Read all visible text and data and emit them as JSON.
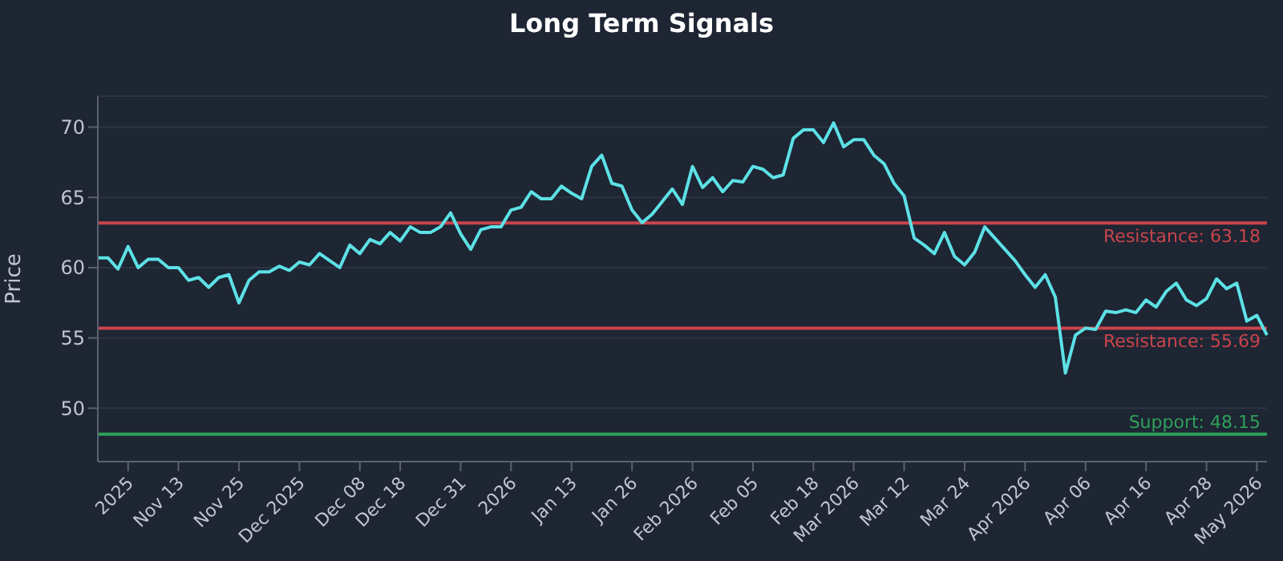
{
  "chart_data": {
    "type": "line",
    "title": "Long Term Signals",
    "ylabel": "Price",
    "categories": [
      null,
      null,
      null,
      "2025",
      null,
      null,
      null,
      null,
      "Nov 13",
      null,
      null,
      null,
      null,
      null,
      "Nov 25",
      null,
      null,
      null,
      null,
      null,
      "Dec 2025",
      null,
      null,
      null,
      null,
      null,
      "Dec 08",
      null,
      null,
      null,
      "Dec 18",
      null,
      null,
      null,
      null,
      null,
      "Dec 31",
      null,
      null,
      null,
      null,
      "2026",
      null,
      null,
      null,
      null,
      null,
      "Jan 13",
      null,
      null,
      null,
      null,
      null,
      "Jan 26",
      null,
      null,
      null,
      null,
      null,
      "Feb 2026",
      null,
      null,
      null,
      null,
      null,
      "Feb 05",
      null,
      null,
      null,
      null,
      null,
      "Feb 18",
      null,
      null,
      null,
      "Mar 2026",
      null,
      null,
      null,
      null,
      "Mar 12",
      null,
      null,
      null,
      null,
      null,
      "Mar 24",
      null,
      null,
      null,
      null,
      null,
      "Apr 2026",
      null,
      null,
      null,
      null,
      null,
      "Apr 06",
      null,
      null,
      null,
      null,
      null,
      "Apr 16",
      null,
      null,
      null,
      null,
      null,
      "Apr 28",
      null,
      null,
      null,
      null,
      "May 2026",
      null
    ],
    "series": [
      {
        "color": "#5ce1e6",
        "values": [
          60.7,
          60.7,
          59.9,
          61.5,
          60.0,
          60.6,
          60.6,
          60.0,
          60.0,
          59.1,
          59.3,
          58.6,
          59.3,
          59.5,
          57.5,
          59.1,
          59.7,
          59.7,
          60.1,
          59.8,
          60.4,
          60.2,
          61.0,
          60.5,
          60.0,
          61.6,
          61.0,
          62.0,
          61.7,
          62.5,
          61.9,
          62.9,
          62.5,
          62.5,
          62.9,
          63.9,
          62.4,
          61.3,
          62.7,
          62.9,
          62.9,
          64.1,
          64.3,
          65.4,
          64.9,
          64.9,
          65.8,
          65.3,
          64.9,
          67.2,
          68.0,
          66.0,
          65.8,
          64.1,
          63.2,
          63.8,
          64.7,
          65.6,
          64.5,
          67.2,
          65.7,
          66.4,
          65.4,
          66.2,
          66.1,
          67.2,
          67.0,
          66.4,
          66.6,
          69.2,
          69.8,
          69.8,
          68.9,
          70.3,
          68.6,
          69.1,
          69.1,
          68.0,
          67.4,
          66.0,
          65.1,
          62.1,
          61.6,
          61.0,
          62.5,
          60.8,
          60.2,
          61.1,
          62.9,
          62.1,
          61.3,
          60.5,
          59.5,
          58.6,
          59.5,
          57.9,
          52.5,
          55.2,
          55.7,
          55.6,
          56.9,
          56.8,
          57.0,
          56.8,
          57.7,
          57.2,
          58.3,
          58.9,
          57.7,
          57.3,
          57.8,
          59.2,
          58.5,
          58.9,
          56.2,
          56.6,
          55.2
        ]
      }
    ],
    "ylim": [
      46.2,
      72.2
    ],
    "yticks": [
      50,
      55,
      60,
      65,
      70
    ],
    "grid": "y",
    "legend": false,
    "marker": "none",
    "line_style": "solid",
    "ref_lines": [
      {
        "axis": "y",
        "value": 63.18,
        "label": "Resistance: 63.18",
        "color": "#c9444b"
      },
      {
        "axis": "y",
        "value": 55.69,
        "label": "Resistance: 55.69",
        "color": "#c9444b"
      },
      {
        "axis": "y",
        "value": 48.15,
        "label": "Support: 48.15",
        "color": "#2ea05a"
      }
    ]
  }
}
